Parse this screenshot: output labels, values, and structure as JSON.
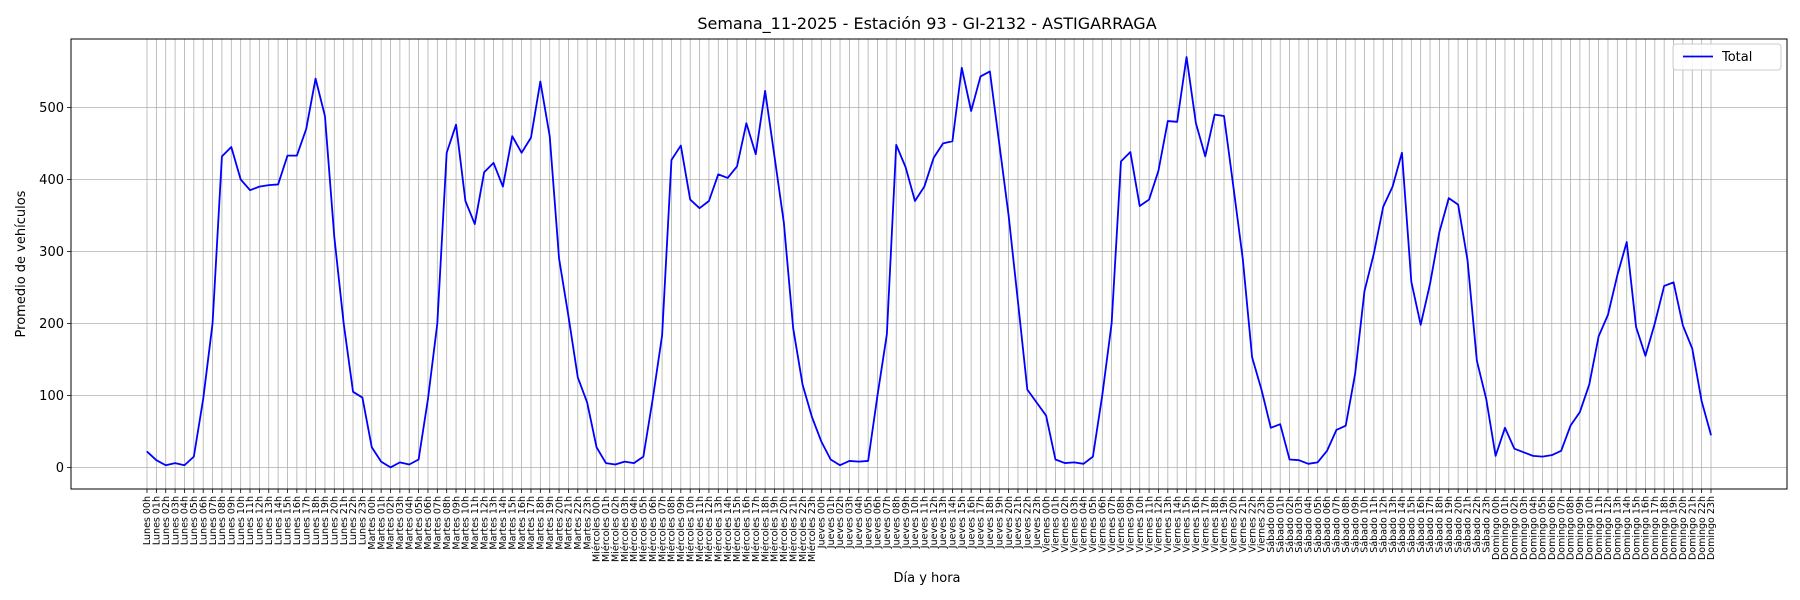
{
  "chart_data": {
    "type": "line",
    "title": "Semana_11-2025 - Estación 93 - GI-2132  - ASTIGARRAGA",
    "xlabel": "Día y hora",
    "ylabel": "Promedio de vehículos",
    "ylim": [
      -30,
      595
    ],
    "yticks": [
      0,
      100,
      200,
      300,
      400,
      500
    ],
    "grid": true,
    "legend_position": "top-right",
    "days": [
      "Lunes",
      "Martes",
      "Miércoles",
      "Jueves",
      "Viernes",
      "Sábado",
      "Domingo"
    ],
    "categories": [
      "Lunes 00h",
      "Lunes 01h",
      "Lunes 02h",
      "Lunes 03h",
      "Lunes 04h",
      "Lunes 05h",
      "Lunes 06h",
      "Lunes 07h",
      "Lunes 08h",
      "Lunes 09h",
      "Lunes 10h",
      "Lunes 11h",
      "Lunes 12h",
      "Lunes 13h",
      "Lunes 14h",
      "Lunes 15h",
      "Lunes 16h",
      "Lunes 17h",
      "Lunes 18h",
      "Lunes 19h",
      "Lunes 20h",
      "Lunes 21h",
      "Lunes 22h",
      "Lunes 23h",
      "Martes 00h",
      "Martes 01h",
      "Martes 02h",
      "Martes 03h",
      "Martes 04h",
      "Martes 05h",
      "Martes 06h",
      "Martes 07h",
      "Martes 08h",
      "Martes 09h",
      "Martes 10h",
      "Martes 11h",
      "Martes 12h",
      "Martes 13h",
      "Martes 14h",
      "Martes 15h",
      "Martes 16h",
      "Martes 17h",
      "Martes 18h",
      "Martes 19h",
      "Martes 20h",
      "Martes 21h",
      "Martes 22h",
      "Martes 23h",
      "Miércoles 00h",
      "Miércoles 01h",
      "Miércoles 02h",
      "Miércoles 03h",
      "Miércoles 04h",
      "Miércoles 05h",
      "Miércoles 06h",
      "Miércoles 07h",
      "Miércoles 08h",
      "Miércoles 09h",
      "Miércoles 10h",
      "Miércoles 11h",
      "Miércoles 12h",
      "Miércoles 13h",
      "Miércoles 14h",
      "Miércoles 15h",
      "Miércoles 16h",
      "Miércoles 17h",
      "Miércoles 18h",
      "Miércoles 19h",
      "Miércoles 20h",
      "Miércoles 21h",
      "Miércoles 22h",
      "Miércoles 23h",
      "Jueves 00h",
      "Jueves 01h",
      "Jueves 02h",
      "Jueves 03h",
      "Jueves 04h",
      "Jueves 05h",
      "Jueves 06h",
      "Jueves 07h",
      "Jueves 08h",
      "Jueves 09h",
      "Jueves 10h",
      "Jueves 11h",
      "Jueves 12h",
      "Jueves 13h",
      "Jueves 14h",
      "Jueves 15h",
      "Jueves 16h",
      "Jueves 17h",
      "Jueves 18h",
      "Jueves 19h",
      "Jueves 20h",
      "Jueves 21h",
      "Jueves 22h",
      "Jueves 23h",
      "Viernes 00h",
      "Viernes 01h",
      "Viernes 02h",
      "Viernes 03h",
      "Viernes 04h",
      "Viernes 05h",
      "Viernes 06h",
      "Viernes 07h",
      "Viernes 08h",
      "Viernes 09h",
      "Viernes 10h",
      "Viernes 11h",
      "Viernes 12h",
      "Viernes 13h",
      "Viernes 14h",
      "Viernes 15h",
      "Viernes 16h",
      "Viernes 17h",
      "Viernes 18h",
      "Viernes 19h",
      "Viernes 20h",
      "Viernes 21h",
      "Viernes 22h",
      "Viernes 23h",
      "Sábado 00h",
      "Sábado 01h",
      "Sábado 02h",
      "Sábado 03h",
      "Sábado 04h",
      "Sábado 05h",
      "Sábado 06h",
      "Sábado 07h",
      "Sábado 08h",
      "Sábado 09h",
      "Sábado 10h",
      "Sábado 11h",
      "Sábado 12h",
      "Sábado 13h",
      "Sábado 14h",
      "Sábado 15h",
      "Sábado 16h",
      "Sábado 17h",
      "Sábado 18h",
      "Sábado 19h",
      "Sábado 20h",
      "Sábado 21h",
      "Sábado 22h",
      "Sábado 23h",
      "Domingo 00h",
      "Domingo 01h",
      "Domingo 02h",
      "Domingo 03h",
      "Domingo 04h",
      "Domingo 05h",
      "Domingo 06h",
      "Domingo 07h",
      "Domingo 08h",
      "Domingo 09h",
      "Domingo 10h",
      "Domingo 11h",
      "Domingo 12h",
      "Domingo 13h",
      "Domingo 14h",
      "Domingo 15h",
      "Domingo 16h",
      "Domingo 17h",
      "Domingo 18h",
      "Domingo 19h",
      "Domingo 20h",
      "Domingo 21h",
      "Domingo 22h",
      "Domingo 23h"
    ],
    "series": [
      {
        "name": "Total",
        "color": "#0000ff",
        "values": [
          22,
          10,
          3,
          6,
          3,
          15,
          95,
          200,
          432,
          445,
          400,
          385,
          390,
          392,
          393,
          433,
          433,
          470,
          540,
          488,
          320,
          200,
          105,
          97,
          28,
          8,
          0,
          7,
          4,
          11,
          95,
          200,
          437,
          476,
          370,
          338,
          410,
          423,
          390,
          460,
          437,
          458,
          536,
          460,
          290,
          210,
          125,
          90,
          28,
          6,
          4,
          8,
          6,
          15,
          95,
          183,
          427,
          447,
          372,
          360,
          370,
          407,
          402,
          418,
          478,
          435,
          523,
          432,
          340,
          193,
          115,
          70,
          36,
          11,
          3,
          9,
          8,
          9,
          100,
          185,
          448,
          417,
          370,
          390,
          430,
          450,
          453,
          555,
          495,
          543,
          550,
          450,
          350,
          230,
          108,
          90,
          72,
          11,
          6,
          7,
          5,
          15,
          100,
          200,
          425,
          438,
          363,
          372,
          412,
          481,
          480,
          570,
          478,
          432,
          490,
          488,
          390,
          290,
          153,
          108,
          55,
          60,
          11,
          10,
          5,
          7,
          23,
          52,
          58,
          130,
          245,
          297,
          362,
          390,
          437,
          258,
          198,
          255,
          327,
          374,
          365,
          288,
          148,
          95,
          16,
          55,
          26,
          21,
          16,
          15,
          17,
          23,
          58,
          77,
          115,
          182,
          212,
          267,
          313,
          195,
          155,
          200,
          252,
          257,
          197,
          165,
          92,
          45
        ]
      }
    ]
  }
}
